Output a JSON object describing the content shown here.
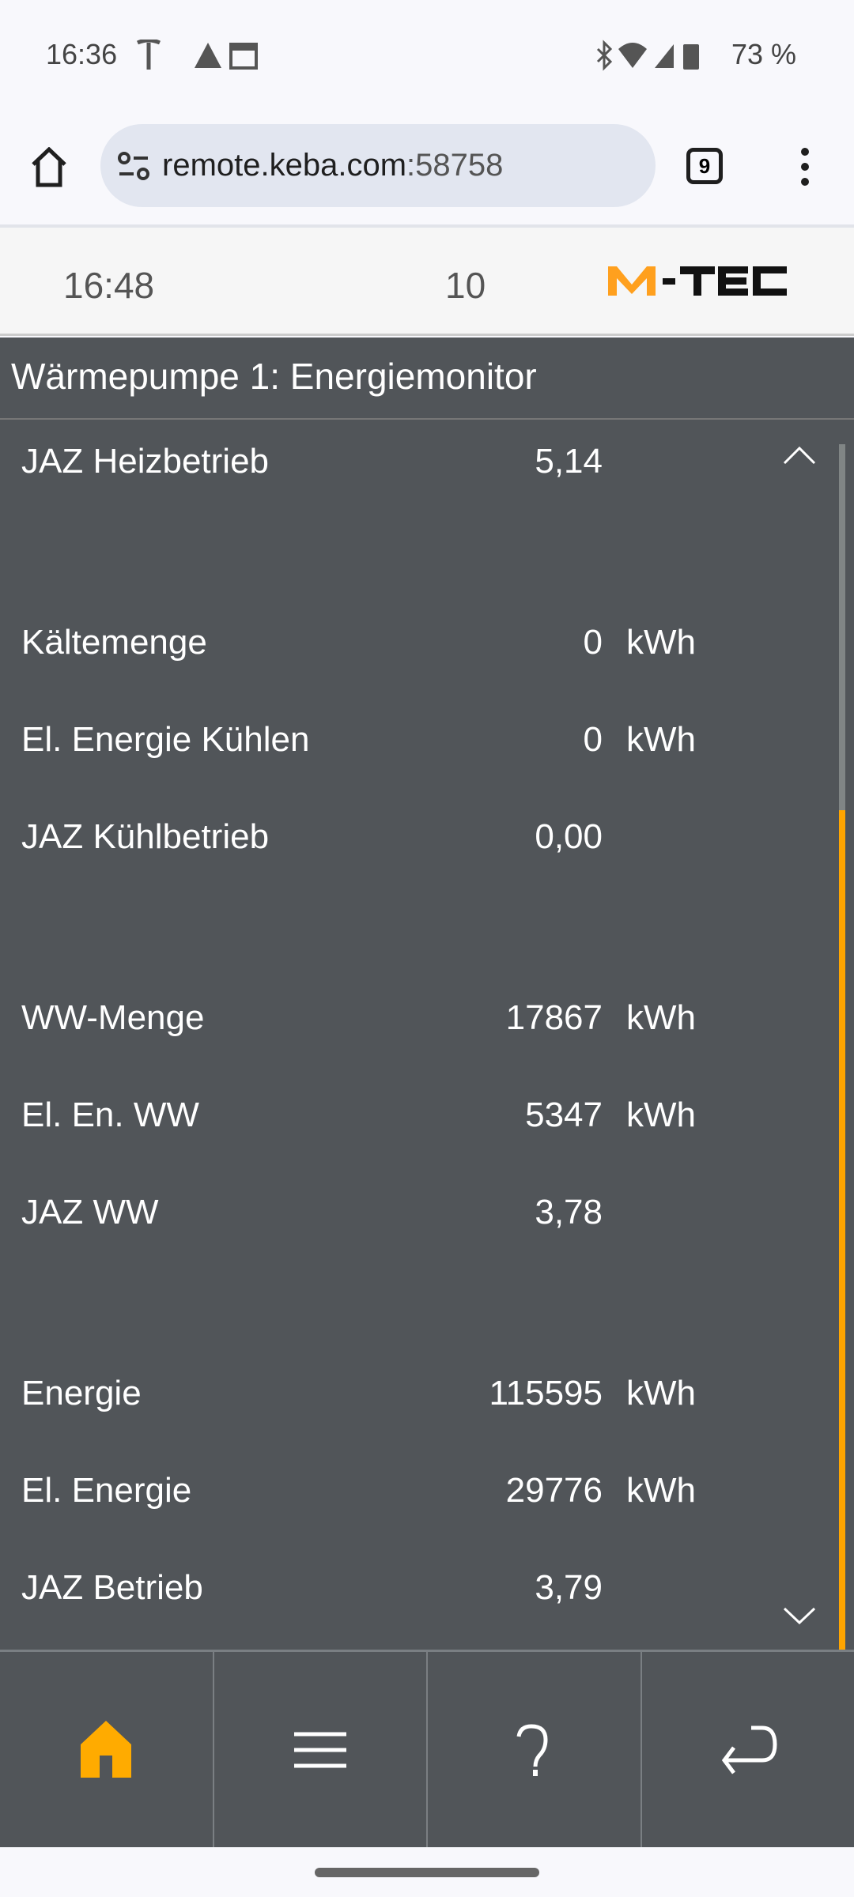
{
  "status_bar": {
    "time": "16:36",
    "battery": "73 %",
    "icons": [
      "tesla-icon",
      "warning-icon",
      "calendar-icon",
      "bluetooth-icon",
      "wifi-icon",
      "signal-icon",
      "battery-icon"
    ]
  },
  "browser": {
    "url_host": "remote.keba.com",
    "url_port": ":58758",
    "tab_count": "9"
  },
  "app_header": {
    "time": "16:48",
    "number": "10",
    "logo": "M-TEC"
  },
  "title": "Wärmepumpe 1: Energiemonitor",
  "rows": [
    {
      "label": "JAZ Heizbetrieb",
      "value": "5,14",
      "unit": ""
    },
    {
      "label": "Kältemenge",
      "value": "0",
      "unit": "kWh"
    },
    {
      "label": "El. Energie Kühlen",
      "value": "0",
      "unit": "kWh"
    },
    {
      "label": "JAZ Kühlbetrieb",
      "value": "0,00",
      "unit": ""
    },
    {
      "label": "WW-Menge",
      "value": "17867",
      "unit": "kWh"
    },
    {
      "label": "El. En. WW",
      "value": "5347",
      "unit": "kWh"
    },
    {
      "label": "JAZ WW",
      "value": "3,78",
      "unit": ""
    },
    {
      "label": "Energie",
      "value": "115595",
      "unit": "kWh"
    },
    {
      "label": "El. Energie",
      "value": "29776",
      "unit": "kWh"
    },
    {
      "label": "JAZ Betrieb",
      "value": "3,79",
      "unit": ""
    }
  ],
  "colors": {
    "accent": "#FFA500",
    "background": "#515559"
  },
  "nav": [
    "home-icon",
    "menu-icon",
    "help-icon",
    "back-icon"
  ]
}
